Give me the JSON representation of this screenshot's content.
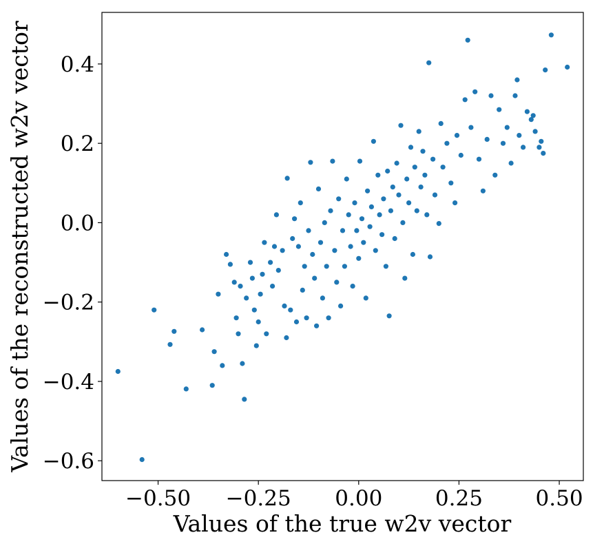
{
  "chart_data": {
    "type": "scatter",
    "title": "",
    "xlabel": "Values of the true w2v vector",
    "ylabel": "Values of the reconstructed w2v vector",
    "xlim": [
      -0.64,
      0.56
    ],
    "ylim": [
      -0.65,
      0.53
    ],
    "xticks": [
      -0.5,
      -0.25,
      0.0,
      0.25,
      0.5
    ],
    "xtick_labels": [
      "−0.50",
      "−0.25",
      "0.00",
      "0.25",
      "0.50"
    ],
    "yticks": [
      -0.6,
      -0.4,
      -0.2,
      0.0,
      0.2,
      0.4
    ],
    "ytick_labels": [
      "−0.6",
      "−0.4",
      "−0.2",
      "0.0",
      "0.2",
      "0.4"
    ],
    "grid": false,
    "legend": "none",
    "marker_color": "#1f77b4",
    "series": [
      {
        "points": [
          [
            -0.6,
            -0.375
          ],
          [
            -0.54,
            -0.597
          ],
          [
            -0.51,
            -0.22
          ],
          [
            -0.47,
            -0.307
          ],
          [
            -0.46,
            -0.274
          ],
          [
            -0.43,
            -0.419
          ],
          [
            -0.39,
            -0.27
          ],
          [
            -0.365,
            -0.41
          ],
          [
            -0.36,
            -0.325
          ],
          [
            -0.35,
            -0.18
          ],
          [
            -0.34,
            -0.36
          ],
          [
            -0.33,
            -0.08
          ],
          [
            -0.32,
            -0.105
          ],
          [
            -0.31,
            -0.15
          ],
          [
            -0.305,
            -0.24
          ],
          [
            -0.3,
            -0.28
          ],
          [
            -0.295,
            -0.16
          ],
          [
            -0.29,
            -0.355
          ],
          [
            -0.285,
            -0.445
          ],
          [
            -0.28,
            -0.19
          ],
          [
            -0.27,
            -0.1
          ],
          [
            -0.265,
            -0.14
          ],
          [
            -0.26,
            -0.22
          ],
          [
            -0.255,
            -0.31
          ],
          [
            -0.25,
            -0.25
          ],
          [
            -0.245,
            -0.18
          ],
          [
            -0.24,
            -0.13
          ],
          [
            -0.235,
            -0.05
          ],
          [
            -0.23,
            -0.28
          ],
          [
            -0.22,
            -0.1
          ],
          [
            -0.215,
            -0.16
          ],
          [
            -0.21,
            -0.06
          ],
          [
            -0.205,
            0.02
          ],
          [
            -0.2,
            -0.12
          ],
          [
            -0.19,
            -0.07
          ],
          [
            -0.185,
            -0.21
          ],
          [
            -0.18,
            -0.29
          ],
          [
            -0.178,
            0.112
          ],
          [
            -0.17,
            -0.22
          ],
          [
            -0.165,
            -0.04
          ],
          [
            -0.16,
            0.01
          ],
          [
            -0.155,
            -0.25
          ],
          [
            -0.15,
            -0.06
          ],
          [
            -0.145,
            0.05
          ],
          [
            -0.14,
            -0.17
          ],
          [
            -0.135,
            -0.11
          ],
          [
            -0.13,
            -0.24
          ],
          [
            -0.125,
            -0.02
          ],
          [
            -0.12,
            0.152
          ],
          [
            -0.115,
            -0.08
          ],
          [
            -0.11,
            -0.14
          ],
          [
            -0.105,
            -0.26
          ],
          [
            -0.1,
            0.085
          ],
          [
            -0.095,
            -0.05
          ],
          [
            -0.09,
            -0.19
          ],
          [
            -0.085,
            0.0
          ],
          [
            -0.08,
            -0.11
          ],
          [
            -0.075,
            -0.24
          ],
          [
            -0.07,
            0.03
          ],
          [
            -0.065,
            0.155
          ],
          [
            -0.06,
            -0.07
          ],
          [
            -0.055,
            -0.15
          ],
          [
            -0.05,
            0.06
          ],
          [
            -0.045,
            -0.21
          ],
          [
            -0.04,
            -0.02
          ],
          [
            -0.035,
            -0.11
          ],
          [
            -0.03,
            0.11
          ],
          [
            -0.025,
            0.02
          ],
          [
            -0.02,
            -0.06
          ],
          [
            -0.015,
            -0.16
          ],
          [
            -0.01,
            0.05
          ],
          [
            -0.005,
            -0.02
          ],
          [
            0.0,
            -0.09
          ],
          [
            0.003,
            0.155
          ],
          [
            0.008,
            0.01
          ],
          [
            0.012,
            -0.05
          ],
          [
            0.018,
            -0.19
          ],
          [
            0.022,
            0.08
          ],
          [
            0.028,
            -0.01
          ],
          [
            0.032,
            0.04
          ],
          [
            0.037,
            0.205
          ],
          [
            0.042,
            -0.07
          ],
          [
            0.048,
            0.12
          ],
          [
            0.052,
            0.02
          ],
          [
            0.058,
            -0.03
          ],
          [
            0.062,
            0.06
          ],
          [
            0.068,
            -0.11
          ],
          [
            0.072,
            0.13
          ],
          [
            0.076,
            -0.235
          ],
          [
            0.08,
            0.03
          ],
          [
            0.085,
            0.09
          ],
          [
            0.09,
            -0.04
          ],
          [
            0.095,
            0.15
          ],
          [
            0.1,
            0.07
          ],
          [
            0.105,
            0.245
          ],
          [
            0.11,
            0.0
          ],
          [
            0.115,
            -0.14
          ],
          [
            0.12,
            0.11
          ],
          [
            0.125,
            0.05
          ],
          [
            0.13,
            0.19
          ],
          [
            0.135,
            -0.08
          ],
          [
            0.14,
            0.14
          ],
          [
            0.145,
            0.03
          ],
          [
            0.15,
            0.23
          ],
          [
            0.155,
            0.09
          ],
          [
            0.16,
            0.18
          ],
          [
            0.165,
            0.12
          ],
          [
            0.17,
            0.02
          ],
          [
            0.175,
            0.403
          ],
          [
            0.178,
            -0.086
          ],
          [
            0.185,
            0.16
          ],
          [
            0.19,
            0.07
          ],
          [
            0.2,
            -0.002
          ],
          [
            0.205,
            0.25
          ],
          [
            0.21,
            0.14
          ],
          [
            0.22,
            0.2
          ],
          [
            0.23,
            0.1
          ],
          [
            0.24,
            0.05
          ],
          [
            0.245,
            0.22
          ],
          [
            0.255,
            0.17
          ],
          [
            0.265,
            0.31
          ],
          [
            0.272,
            0.46
          ],
          [
            0.28,
            0.24
          ],
          [
            0.29,
            0.33
          ],
          [
            0.3,
            0.16
          ],
          [
            0.31,
            0.08
          ],
          [
            0.32,
            0.21
          ],
          [
            0.33,
            0.32
          ],
          [
            0.34,
            0.12
          ],
          [
            0.35,
            0.285
          ],
          [
            0.36,
            0.2
          ],
          [
            0.37,
            0.24
          ],
          [
            0.38,
            0.15
          ],
          [
            0.39,
            0.32
          ],
          [
            0.395,
            0.36
          ],
          [
            0.4,
            0.22
          ],
          [
            0.41,
            0.19
          ],
          [
            0.42,
            0.28
          ],
          [
            0.43,
            0.26
          ],
          [
            0.435,
            0.27
          ],
          [
            0.44,
            0.23
          ],
          [
            0.45,
            0.19
          ],
          [
            0.455,
            0.205
          ],
          [
            0.46,
            0.175
          ],
          [
            0.465,
            0.385
          ],
          [
            0.48,
            0.473
          ],
          [
            0.52,
            0.392
          ]
        ]
      }
    ]
  }
}
